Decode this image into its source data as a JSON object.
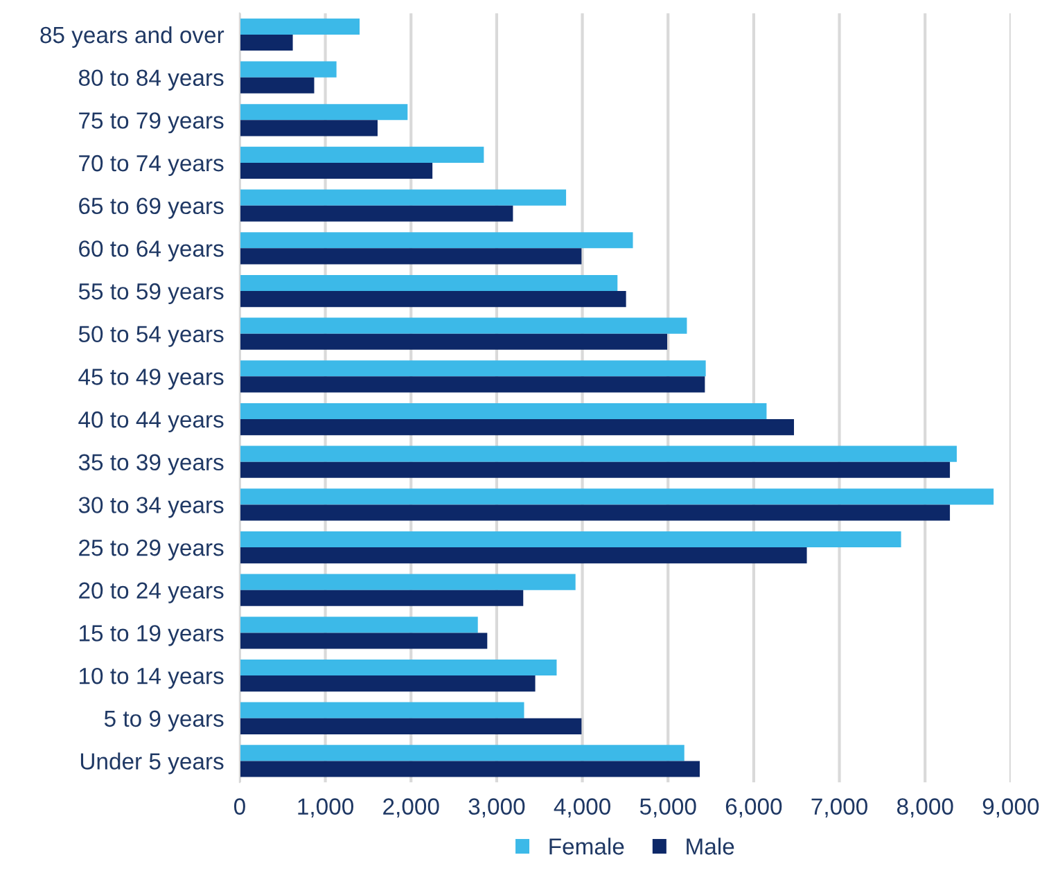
{
  "chart_data": {
    "type": "bar",
    "orientation": "horizontal",
    "categories": [
      "85 years and over",
      "80 to 84 years",
      "75 to 79 years",
      "70 to 74 years",
      "65 to 69 years",
      "60 to 64 years",
      "55 to 59 years",
      "50 to 54 years",
      "45 to 49 years",
      "40 to 44 years",
      "35 to 39 years",
      "30 to 34 years",
      "25 to 29 years",
      "20 to 24 years",
      "15 to 19 years",
      "10 to 14 years",
      "5 to 9 years",
      "Under 5 years"
    ],
    "series": [
      {
        "name": "Female",
        "color": "#3cb9e8",
        "values": [
          1400,
          1130,
          1960,
          2850,
          3810,
          4590,
          4410,
          5220,
          5440,
          6150,
          8370,
          8800,
          7720,
          3920,
          2780,
          3700,
          3320,
          5190
        ]
      },
      {
        "name": "Male",
        "color": "#0d2868",
        "values": [
          620,
          870,
          1610,
          2250,
          3190,
          3990,
          4510,
          4990,
          5430,
          6470,
          8290,
          8290,
          6620,
          3310,
          2890,
          3450,
          3990,
          5370
        ]
      }
    ],
    "xlim": [
      0,
      9000
    ],
    "xticks": [
      {
        "value": 0,
        "label": "0"
      },
      {
        "value": 1000,
        "label": "1,000"
      },
      {
        "value": 2000,
        "label": "2,000"
      },
      {
        "value": 3000,
        "label": "3,000"
      },
      {
        "value": 4000,
        "label": "4,000"
      },
      {
        "value": 5000,
        "label": "5,000"
      },
      {
        "value": 6000,
        "label": "6,000"
      },
      {
        "value": 7000,
        "label": "7,000"
      },
      {
        "value": 8000,
        "label": "8,000"
      },
      {
        "value": 9000,
        "label": "9,000"
      }
    ],
    "grid": "x",
    "legend": "bottom"
  }
}
